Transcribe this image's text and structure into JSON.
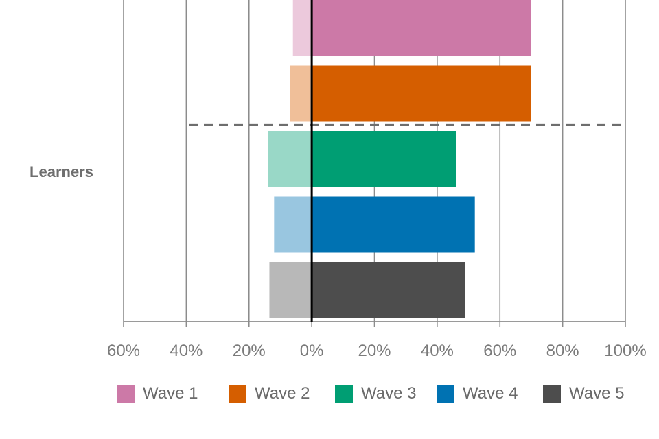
{
  "chart_data": {
    "type": "bar",
    "orientation": "horizontal",
    "category_label": "Learners",
    "x_tick_labels": [
      "60%",
      "40%",
      "20%",
      "0%",
      "20%",
      "40%",
      "60%",
      "80%",
      "100%"
    ],
    "xlim": [
      -60,
      100
    ],
    "grid": true,
    "legend_position": "bottom",
    "series": [
      {
        "name": "Wave 1",
        "negative": -6,
        "positive": 70,
        "color": "#cc79a7",
        "light_color": "#ecc9dc"
      },
      {
        "name": "Wave 2",
        "negative": -7,
        "positive": 70,
        "color": "#d55e00",
        "light_color": "#f0bf99"
      },
      {
        "name": "Wave 3",
        "negative": -14,
        "positive": 46,
        "color": "#009e73",
        "light_color": "#99d8c7"
      },
      {
        "name": "Wave 4",
        "negative": -12,
        "positive": 52,
        "color": "#0072b2",
        "light_color": "#99c6e0"
      },
      {
        "name": "Wave 5",
        "negative": -13.5,
        "positive": 49,
        "color": "#4d4d4d",
        "light_color": "#b8b8b8"
      }
    ],
    "divider_after_series": 2
  }
}
